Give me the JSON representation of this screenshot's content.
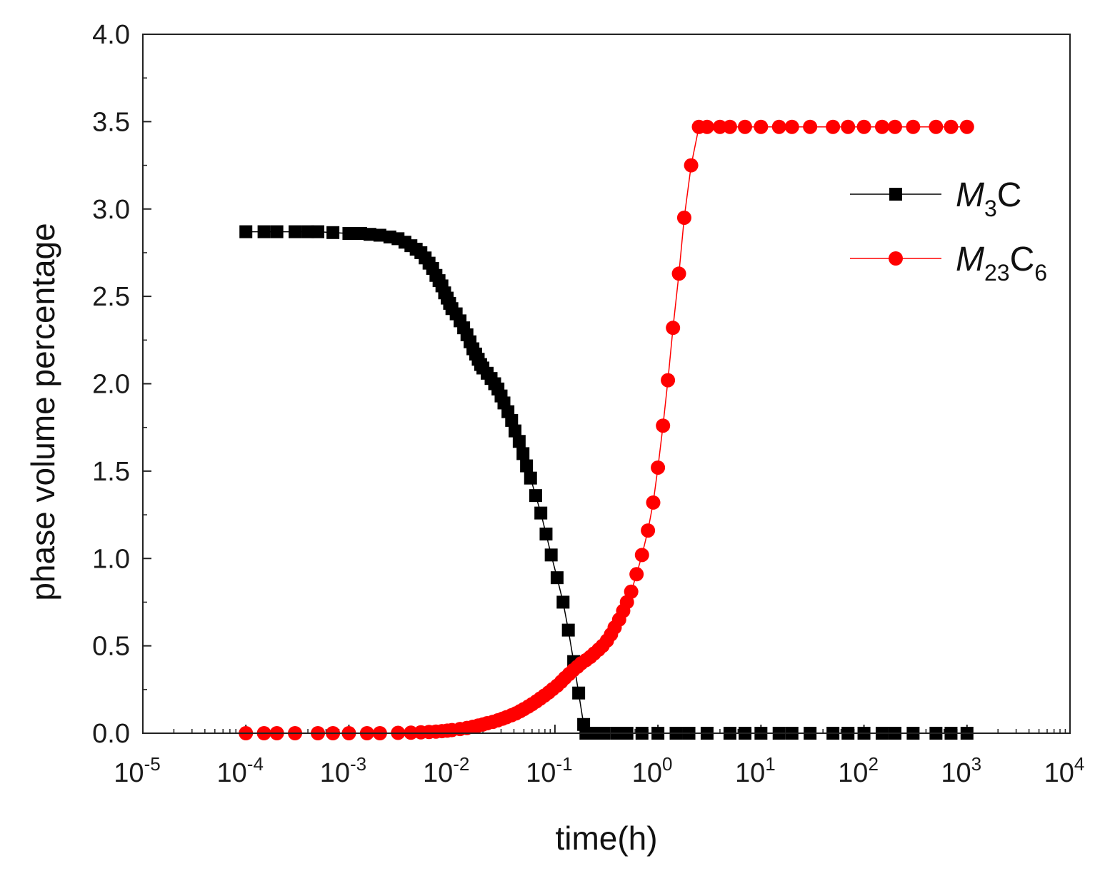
{
  "chart_data": {
    "type": "scatter",
    "title": "",
    "xlabel": "time(h)",
    "ylabel": "phase volume percentage",
    "xscale": "log",
    "xlim": [
      1e-05,
      10000
    ],
    "ylim": [
      0,
      4.0
    ],
    "x_ticks": [
      {
        "base": "10",
        "exp": "-5",
        "value": 1e-05
      },
      {
        "base": "10",
        "exp": "-4",
        "value": 0.0001
      },
      {
        "base": "10",
        "exp": "-3",
        "value": 0.001
      },
      {
        "base": "10",
        "exp": "-2",
        "value": 0.01
      },
      {
        "base": "10",
        "exp": "-1",
        "value": 0.1
      },
      {
        "base": "10",
        "exp": "0",
        "value": 1
      },
      {
        "base": "10",
        "exp": "1",
        "value": 10
      },
      {
        "base": "10",
        "exp": "2",
        "value": 100
      },
      {
        "base": "10",
        "exp": "3",
        "value": 1000
      },
      {
        "base": "10",
        "exp": "4",
        "value": 10000
      }
    ],
    "y_ticks": [
      {
        "label": "0.0",
        "value": 0.0
      },
      {
        "label": "0.5",
        "value": 0.5
      },
      {
        "label": "1.0",
        "value": 1.0
      },
      {
        "label": "1.5",
        "value": 1.5
      },
      {
        "label": "2.0",
        "value": 2.0
      },
      {
        "label": "2.5",
        "value": 2.5
      },
      {
        "label": "3.0",
        "value": 3.0
      },
      {
        "label": "3.5",
        "value": 3.5
      },
      {
        "label": "4.0",
        "value": 4.0
      }
    ],
    "legend_position": "upper-right",
    "series": [
      {
        "name": "M3C",
        "legend_main": "M",
        "legend_sub": "3",
        "legend_tail": "C",
        "legend_sub2": "",
        "color": "#000000",
        "marker": "square",
        "points": [
          [
            0.0001,
            2.87
          ],
          [
            0.00015,
            2.87
          ],
          [
            0.0002,
            2.87
          ],
          [
            0.0003,
            2.87
          ],
          [
            0.0004,
            2.87
          ],
          [
            0.0005,
            2.87
          ],
          [
            0.0007,
            2.865
          ],
          [
            0.001,
            2.86
          ],
          [
            0.0013,
            2.86
          ],
          [
            0.0016,
            2.855
          ],
          [
            0.002,
            2.85
          ],
          [
            0.0025,
            2.84
          ],
          [
            0.003,
            2.83
          ],
          [
            0.0035,
            2.81
          ],
          [
            0.004,
            2.79
          ],
          [
            0.0045,
            2.77
          ],
          [
            0.005,
            2.75
          ],
          [
            0.0055,
            2.72
          ],
          [
            0.006,
            2.69
          ],
          [
            0.0065,
            2.66
          ],
          [
            0.007,
            2.62
          ],
          [
            0.0075,
            2.59
          ],
          [
            0.008,
            2.56
          ],
          [
            0.0085,
            2.52
          ],
          [
            0.009,
            2.49
          ],
          [
            0.0095,
            2.46
          ],
          [
            0.01,
            2.43
          ],
          [
            0.011,
            2.4
          ],
          [
            0.012,
            2.36
          ],
          [
            0.013,
            2.32
          ],
          [
            0.014,
            2.28
          ],
          [
            0.015,
            2.24
          ],
          [
            0.016,
            2.2
          ],
          [
            0.017,
            2.17
          ],
          [
            0.018,
            2.14
          ],
          [
            0.019,
            2.11
          ],
          [
            0.02,
            2.09
          ],
          [
            0.022,
            2.06
          ],
          [
            0.024,
            2.03
          ],
          [
            0.026,
            2.0
          ],
          [
            0.028,
            1.97
          ],
          [
            0.03,
            1.93
          ],
          [
            0.032,
            1.89
          ],
          [
            0.035,
            1.84
          ],
          [
            0.038,
            1.79
          ],
          [
            0.041,
            1.73
          ],
          [
            0.045,
            1.67
          ],
          [
            0.049,
            1.6
          ],
          [
            0.053,
            1.53
          ],
          [
            0.058,
            1.46
          ],
          [
            0.065,
            1.36
          ],
          [
            0.073,
            1.26
          ],
          [
            0.082,
            1.14
          ],
          [
            0.092,
            1.02
          ],
          [
            0.105,
            0.89
          ],
          [
            0.12,
            0.75
          ],
          [
            0.135,
            0.59
          ],
          [
            0.152,
            0.41
          ],
          [
            0.17,
            0.23
          ],
          [
            0.19,
            0.05
          ],
          [
            0.2,
            0.0
          ],
          [
            0.25,
            0.0
          ],
          [
            0.3,
            0.0
          ],
          [
            0.4,
            0.0
          ],
          [
            0.5,
            0.0
          ],
          [
            0.7,
            0.0
          ],
          [
            1,
            0.0
          ],
          [
            1.5,
            0.0
          ],
          [
            2,
            0.0
          ],
          [
            3,
            0.0
          ],
          [
            5,
            0.0
          ],
          [
            7,
            0.0
          ],
          [
            10,
            0.0
          ],
          [
            15,
            0.0
          ],
          [
            20,
            0.0
          ],
          [
            30,
            0.0
          ],
          [
            50,
            0.0
          ],
          [
            70,
            0.0
          ],
          [
            100,
            0.0
          ],
          [
            150,
            0.0
          ],
          [
            200,
            0.0
          ],
          [
            300,
            0.0
          ],
          [
            500,
            0.0
          ],
          [
            700,
            0.0
          ],
          [
            1000,
            0.0
          ]
        ]
      },
      {
        "name": "M23C6",
        "legend_main": "M",
        "legend_sub": "23",
        "legend_tail": "C",
        "legend_sub2": "6",
        "color": "#ff0000",
        "marker": "circle",
        "points": [
          [
            0.0001,
            0.0
          ],
          [
            0.00015,
            0.0
          ],
          [
            0.0002,
            0.0
          ],
          [
            0.0003,
            0.0
          ],
          [
            0.0005,
            0.0
          ],
          [
            0.0007,
            0.0
          ],
          [
            0.001,
            0.0
          ],
          [
            0.0015,
            0.0
          ],
          [
            0.002,
            0.0
          ],
          [
            0.003,
            0.002
          ],
          [
            0.004,
            0.003
          ],
          [
            0.005,
            0.005
          ],
          [
            0.006,
            0.007
          ],
          [
            0.007,
            0.009
          ],
          [
            0.008,
            0.012
          ],
          [
            0.009,
            0.015
          ],
          [
            0.01,
            0.018
          ],
          [
            0.012,
            0.024
          ],
          [
            0.014,
            0.03
          ],
          [
            0.016,
            0.037
          ],
          [
            0.018,
            0.044
          ],
          [
            0.02,
            0.05
          ],
          [
            0.022,
            0.057
          ],
          [
            0.025,
            0.065
          ],
          [
            0.028,
            0.074
          ],
          [
            0.031,
            0.083
          ],
          [
            0.034,
            0.092
          ],
          [
            0.038,
            0.103
          ],
          [
            0.042,
            0.114
          ],
          [
            0.046,
            0.126
          ],
          [
            0.05,
            0.138
          ],
          [
            0.055,
            0.152
          ],
          [
            0.06,
            0.166
          ],
          [
            0.066,
            0.182
          ],
          [
            0.072,
            0.198
          ],
          [
            0.079,
            0.215
          ],
          [
            0.087,
            0.233
          ],
          [
            0.095,
            0.252
          ],
          [
            0.105,
            0.272
          ],
          [
            0.115,
            0.294
          ],
          [
            0.125,
            0.316
          ],
          [
            0.137,
            0.338
          ],
          [
            0.15,
            0.36
          ],
          [
            0.165,
            0.38
          ],
          [
            0.18,
            0.4
          ],
          [
            0.2,
            0.418
          ],
          [
            0.22,
            0.436
          ],
          [
            0.24,
            0.456
          ],
          [
            0.265,
            0.478
          ],
          [
            0.29,
            0.5
          ],
          [
            0.32,
            0.53
          ],
          [
            0.35,
            0.565
          ],
          [
            0.38,
            0.605
          ],
          [
            0.42,
            0.65
          ],
          [
            0.46,
            0.7
          ],
          [
            0.5,
            0.75
          ],
          [
            0.55,
            0.81
          ],
          [
            0.62,
            0.91
          ],
          [
            0.7,
            1.02
          ],
          [
            0.8,
            1.16
          ],
          [
            0.9,
            1.32
          ],
          [
            1.0,
            1.52
          ],
          [
            1.12,
            1.76
          ],
          [
            1.25,
            2.02
          ],
          [
            1.4,
            2.32
          ],
          [
            1.6,
            2.63
          ],
          [
            1.8,
            2.95
          ],
          [
            2.1,
            3.25
          ],
          [
            2.5,
            3.47
          ],
          [
            3,
            3.47
          ],
          [
            4,
            3.47
          ],
          [
            5,
            3.47
          ],
          [
            7,
            3.47
          ],
          [
            10,
            3.47
          ],
          [
            15,
            3.47
          ],
          [
            20,
            3.47
          ],
          [
            30,
            3.47
          ],
          [
            50,
            3.47
          ],
          [
            70,
            3.47
          ],
          [
            100,
            3.47
          ],
          [
            150,
            3.47
          ],
          [
            200,
            3.47
          ],
          [
            300,
            3.47
          ],
          [
            500,
            3.47
          ],
          [
            700,
            3.47
          ],
          [
            1000,
            3.47
          ]
        ]
      }
    ]
  }
}
